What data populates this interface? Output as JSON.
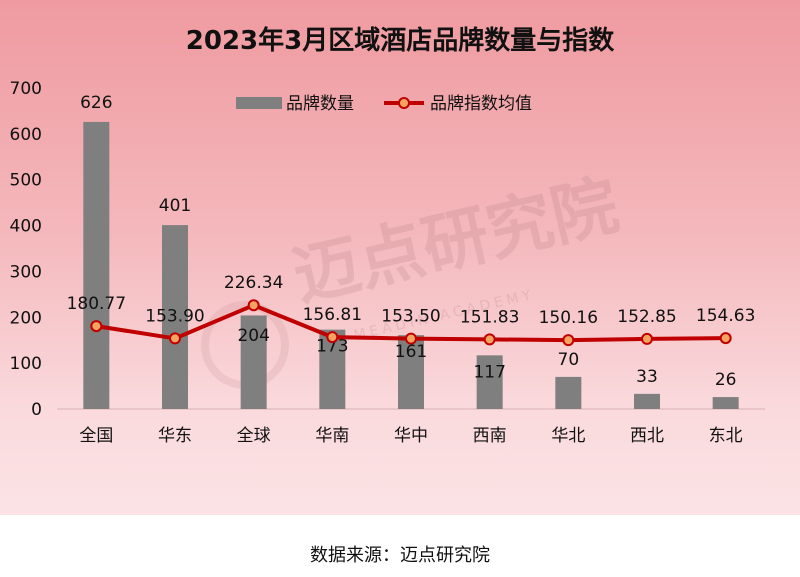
{
  "chart_data": {
    "type": "bar",
    "title": "2023年3月区域酒店品牌数量与指数",
    "categories": [
      "全国",
      "华东",
      "全球",
      "华南",
      "华中",
      "西南",
      "华北",
      "西北",
      "东北"
    ],
    "series": [
      {
        "name": "品牌数量",
        "type": "bar",
        "color": "#7f7f7f",
        "values": [
          626,
          401,
          204,
          173,
          161,
          117,
          70,
          33,
          26
        ]
      },
      {
        "name": "品牌指数均值",
        "type": "line",
        "color": "#c00000",
        "marker_color": "#f4a460",
        "values": [
          180.77,
          153.9,
          226.34,
          156.81,
          153.5,
          151.83,
          150.16,
          152.85,
          154.63
        ],
        "labels": [
          "180.77",
          "153.90",
          "226.34",
          "156.81",
          "153.50",
          "151.83",
          "150.16",
          "152.85",
          "154.63"
        ]
      }
    ],
    "y_ticks": [
      0,
      100,
      200,
      300,
      400,
      500,
      600,
      700
    ],
    "ylim": [
      0,
      700
    ],
    "legend_position": "top-right",
    "grid": false
  },
  "watermark": {
    "text": "迈点研究院",
    "subtext": "MEADIN ACADEMY"
  },
  "source_note": "数据来源：迈点研究院"
}
